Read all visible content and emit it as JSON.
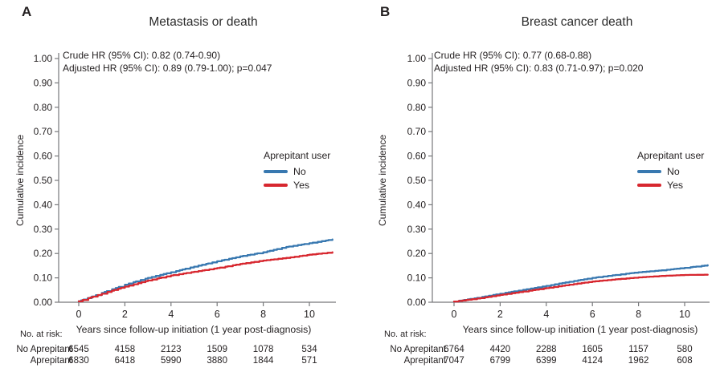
{
  "figure": {
    "background": "#ffffff",
    "text_color": "#231f20",
    "axis_color": "#77787b"
  },
  "chart_data": [
    {
      "type": "line",
      "subtype": "cumulative-incidence-curve",
      "panel_label": "A",
      "title": "Metastasis or death",
      "annotations": [
        "Crude HR (95% CI): 0.82 (0.74-0.90)",
        "Adjusted HR (95% CI): 0.89 (0.79-1.00); p=0.047"
      ],
      "xlabel": "Years since follow-up initiation (1 year post-diagnosis)",
      "ylabel": "Cumulative incidence",
      "xlim": [
        0,
        11.2
      ],
      "ylim": [
        0,
        1.0
      ],
      "xticks": [
        0,
        2,
        4,
        6,
        8,
        10
      ],
      "ytick_step": 0.1,
      "grid": false,
      "legend": {
        "title": "Aprepitant user",
        "position": "inside-right"
      },
      "x": [
        0,
        1,
        2,
        3,
        4,
        5,
        6,
        7,
        8,
        9,
        10,
        11
      ],
      "series": [
        {
          "name": "No",
          "color": "#3878b0",
          "values": [
            0.004,
            0.038,
            0.072,
            0.1,
            0.123,
            0.146,
            0.168,
            0.188,
            0.205,
            0.227,
            0.242,
            0.258
          ]
        },
        {
          "name": "Yes",
          "color": "#d7272f",
          "values": [
            0.004,
            0.035,
            0.064,
            0.089,
            0.11,
            0.125,
            0.14,
            0.157,
            0.171,
            0.182,
            0.195,
            0.205
          ]
        }
      ],
      "risk_table": {
        "header": "No. at risk:",
        "columns": [
          0,
          2,
          4,
          6,
          8,
          10
        ],
        "rows": [
          {
            "label": "No Aprepitant",
            "values": [
              6545,
              4158,
              2123,
              1509,
              1078,
              534
            ]
          },
          {
            "label": "Aprepitant",
            "values": [
              6830,
              6418,
              5990,
              3880,
              1844,
              571
            ]
          }
        ]
      }
    },
    {
      "type": "line",
      "subtype": "cumulative-incidence-curve",
      "panel_label": "B",
      "title": "Breast cancer death",
      "annotations": [
        "Crude HR (95% CI): 0.77 (0.68-0.88)",
        "Adjusted HR (95% CI): 0.83 (0.71-0.97); p=0.020"
      ],
      "xlabel": "Years since follow-up initiation (1 year post-diagnosis)",
      "ylabel": "Cumulative incidence",
      "xlim": [
        0,
        11.2
      ],
      "ylim": [
        0,
        1.0
      ],
      "xticks": [
        0,
        2,
        4,
        6,
        8,
        10
      ],
      "ytick_step": 0.1,
      "grid": false,
      "legend": {
        "title": "Aprepitant user",
        "position": "inside-right"
      },
      "x": [
        0,
        1,
        2,
        3,
        4,
        5,
        6,
        7,
        8,
        9,
        10,
        11
      ],
      "series": [
        {
          "name": "No",
          "color": "#3878b0",
          "values": [
            0.003,
            0.018,
            0.035,
            0.051,
            0.067,
            0.084,
            0.1,
            0.112,
            0.123,
            0.131,
            0.141,
            0.152
          ]
        },
        {
          "name": "Yes",
          "color": "#d7272f",
          "values": [
            0.003,
            0.015,
            0.03,
            0.044,
            0.058,
            0.072,
            0.085,
            0.094,
            0.102,
            0.108,
            0.112,
            0.113
          ]
        }
      ],
      "risk_table": {
        "header": "No. at risk:",
        "columns": [
          0,
          2,
          4,
          6,
          8,
          10
        ],
        "rows": [
          {
            "label": "No Aprepitant",
            "values": [
              6764,
              4420,
              2288,
              1605,
              1157,
              580
            ]
          },
          {
            "label": "Aprepitant",
            "values": [
              7047,
              6799,
              6399,
              4124,
              1962,
              608
            ]
          }
        ]
      }
    }
  ]
}
